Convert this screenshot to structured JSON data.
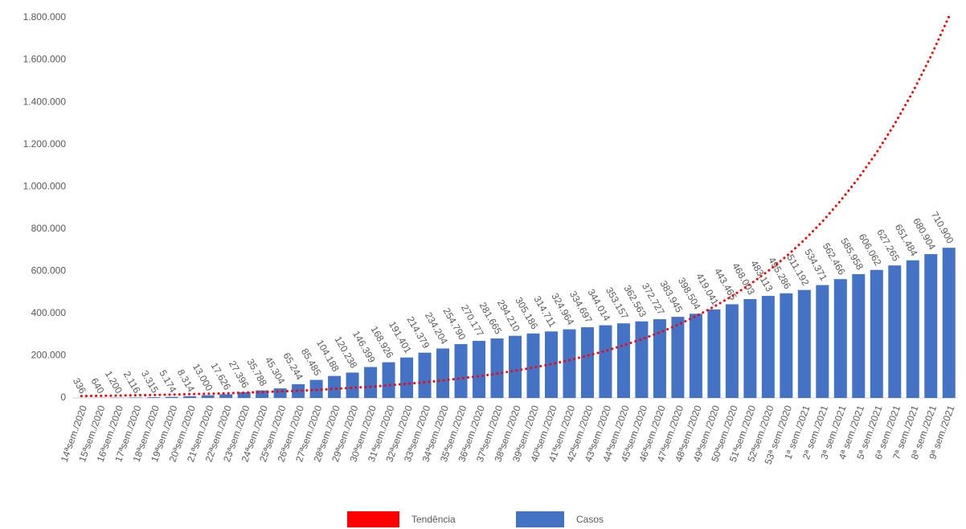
{
  "chart_data": {
    "type": "bar",
    "categories": [
      "14ªsem./2020",
      "15ªsem./2020",
      "16ªsem./2020",
      "17ªsem./2020",
      "18ªsem./2020",
      "19ªsem./2020",
      "20ªsem./2020",
      "21ªsem./2020",
      "22ªsem./2020",
      "23ªsem./2020",
      "24ªsem./2020",
      "25ªsem./2020",
      "26ªsem./2020",
      "27ªsem./2020",
      "28ªsem./2020",
      "29ªsem./2020",
      "30ªsem./2020",
      "31ªsem./2020",
      "32ªsem./2020",
      "33ªsem./2020",
      "34ªsem./2020",
      "35ªsem./2020",
      "36ªsem./2020",
      "37ªsem./2020",
      "38ªsem./2020",
      "39ªsem./2020",
      "40ªsem./2020",
      "41ªsem./2020",
      "42ªsem./2020",
      "43ªsem./2020",
      "44ªsem./2020",
      "45ªsem./2020",
      "46ªsem./2020",
      "47ªsem./2020",
      "48ªsem./2020",
      "49ªsem./2020",
      "50ªsem./2020",
      "51ªsem./2020",
      "52ªsem./2020",
      "53ª sem./2020",
      "1ª sem./2021",
      "2ª sem./2021",
      "3ª sem./2021",
      "4ª sem./2021",
      "5ª sem./2021",
      "6ª sem./2021",
      "7ª sem./2021",
      "8ª sem./2021",
      "9ª sem./2021"
    ],
    "series": [
      {
        "name": "Tendência",
        "type": "line",
        "color": "#ff0000",
        "values": [
          9000,
          10000,
          11000,
          13000,
          14000,
          16000,
          18000,
          20000,
          22000,
          25000,
          28000,
          31000,
          34000,
          38000,
          43000,
          48000,
          53000,
          60000,
          67000,
          74000,
          83000,
          93000,
          103000,
          115000,
          129000,
          144000,
          160000,
          179000,
          200000,
          223000,
          249000,
          278000,
          310000,
          346000,
          387000,
          432000,
          482000,
          538000,
          601000,
          670000,
          748000,
          835000,
          933000,
          1041000,
          1162000,
          1297000,
          1448000,
          1617000,
          1805000
        ]
      },
      {
        "name": "Casos",
        "type": "bar",
        "color": "#4472c4",
        "values": [
          336,
          640,
          1200,
          2116,
          3315,
          5174,
          8314,
          13000,
          17626,
          27396,
          35788,
          45304,
          65244,
          85485,
          104188,
          120238,
          146399,
          168926,
          191401,
          214379,
          234204,
          254790,
          270177,
          281665,
          294210,
          305186,
          314711,
          324964,
          334697,
          344014,
          353157,
          362563,
          372727,
          383945,
          398504,
          419041,
          443465,
          468003,
          483113,
          495286,
          511192,
          534371,
          562466,
          585958,
          606062,
          627265,
          651484,
          680904,
          710900
        ],
        "value_labels": [
          "336",
          "640",
          "1.200",
          "2.116",
          "3.315",
          "5.174",
          "8.314",
          "13.000",
          "17.626",
          "27.396",
          "35.788",
          "45.304",
          "65.244",
          "85.485",
          "104.188",
          "120.238",
          "146.399",
          "168.926",
          "191.401",
          "214.379",
          "234.204",
          "254.790",
          "270.177",
          "281.665",
          "294.210",
          "305.186",
          "314.711",
          "324.964",
          "334.697",
          "344.014",
          "353.157",
          "362.563",
          "372.727",
          "383.945",
          "398.504",
          "419.041",
          "443.465",
          "468.003",
          "483.113",
          "495.286",
          "511.192",
          "534.371",
          "562.466",
          "585.958",
          "606.062",
          "627.265",
          "651.484",
          "680.904",
          "710.900"
        ]
      }
    ],
    "ylim": [
      0,
      1800000
    ],
    "yticks": [
      0,
      {
        "value": 200000,
        "label": "200.000"
      },
      {
        "value": 400000,
        "label": "400.000"
      },
      {
        "value": 600000,
        "label": "600.000"
      },
      {
        "value": 800000,
        "label": "800.000"
      },
      {
        "value": 1000000,
        "label": "1.000.000"
      },
      {
        "value": 1200000,
        "label": "1.200.000"
      },
      {
        "value": 1400000,
        "label": "1.400.000"
      },
      {
        "value": 1600000,
        "label": "1.600.000"
      },
      {
        "value": 1800000,
        "label": "1.800.000"
      }
    ],
    "grid": false,
    "legend": "bottom"
  }
}
